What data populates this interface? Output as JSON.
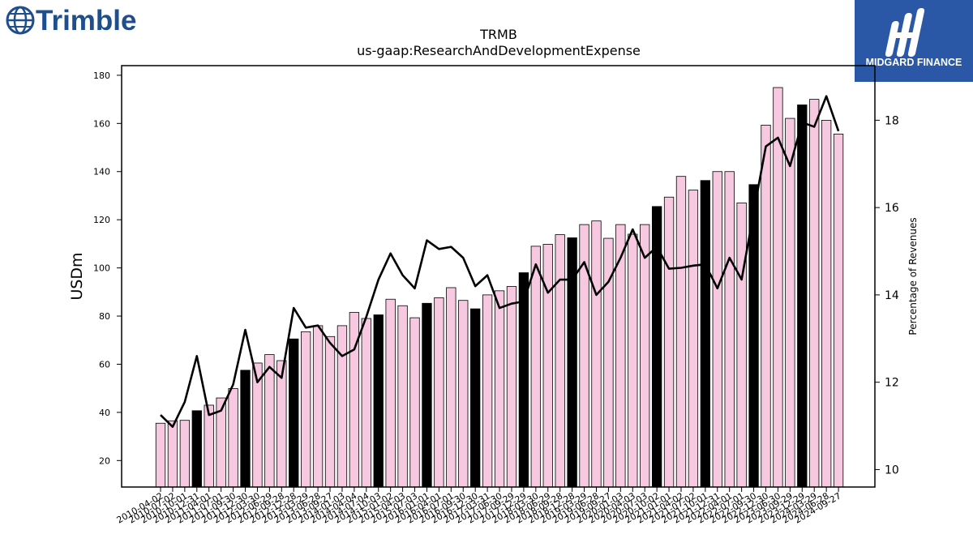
{
  "branding": {
    "left_logo_text": "Trimble",
    "left_logo_color": "#1f4e8c",
    "right_logo_text": "MIDGARD FINANCE",
    "right_logo_bg": "#2b58a6"
  },
  "chart_data": {
    "type": "bar",
    "title": "TRMB",
    "subtitle": "us-gaap:ResearchAndDevelopmentExpense",
    "ylabel": "USDm",
    "y2label": "Percentage of Revenues",
    "ylim": [
      9,
      184
    ],
    "y2lim": [
      9.6,
      19.25
    ],
    "yticks": [
      20,
      40,
      60,
      80,
      100,
      120,
      140,
      160,
      180
    ],
    "y2ticks": [
      10,
      12,
      14,
      16,
      18
    ],
    "bar_color": "#f7c9e0",
    "annual_bar_color": "#000000",
    "line_color": "#000000",
    "categories": [
      "2010-04-02",
      "2010-07-02",
      "2010-10-01",
      "2010-12-31",
      "2011-04-01",
      "2011-07-01",
      "2011-09-30",
      "2011-12-30",
      "2012-03-30",
      "2012-06-29",
      "2012-09-28",
      "2012-12-28",
      "2013-03-29",
      "2013-06-28",
      "2013-09-27",
      "2014-01-03",
      "2014-04-04",
      "2014-07-04",
      "2014-10-03",
      "2015-01-02",
      "2015-04-03",
      "2015-07-03",
      "2016-01-01",
      "2016-04-01",
      "2016-07-01",
      "2016-09-30",
      "2016-12-30",
      "2017-03-31",
      "2017-06-30",
      "2017-09-29",
      "2017-12-29",
      "2018-03-30",
      "2018-06-29",
      "2018-09-28",
      "2018-12-28",
      "2019-03-29",
      "2019-06-28",
      "2019-09-27",
      "2020-01-03",
      "2020-04-03",
      "2020-07-03",
      "2020-10-02",
      "2021-01-01",
      "2021-04-02",
      "2021-07-02",
      "2021-10-01",
      "2021-12-31",
      "2022-04-01",
      "2022-07-01",
      "2022-09-30",
      "2022-12-30",
      "2023-06-30",
      "2023-09-29",
      "2023-12-29",
      "2024-03-29",
      "2024-06-28",
      "2024-09-27"
    ],
    "xtick_labels": [
      "2010-04-02",
      "2010-07-02",
      "2010-10-01",
      "2010-12-31",
      "2011-04-01",
      "2011-07-01",
      "2011-09-30",
      "2011-12-30",
      "2012-03-30",
      "2012-06-29",
      "2012-09-28",
      "2012-12-28",
      "2013-03-29",
      "2013-06-28",
      "2013-09-27",
      "2014-01-03",
      "2014-04-04",
      "2014-07-04",
      "2014-10-03",
      "2015-01-02",
      "2015-04-03",
      "2015-07-03",
      "2016-01-01",
      "2016-04-01",
      "2016-07-01",
      "2016-09-30",
      "2016-12-30",
      "2017-03-31",
      "2017-06-30",
      "2017-09-29",
      "2017-12-29",
      "2018-03-30",
      "2018-06-29",
      "2018-09-28",
      "2018-12-28",
      "2019-03-29",
      "2019-06-28",
      "2019-09-27",
      "2020-01-03",
      "2020-04-03",
      "2020-07-03",
      "2020-10-02",
      "2021-01-01",
      "2021-04-02",
      "2021-07-02",
      "2021-10-01",
      "2021-12-31",
      "2022-04-01",
      "2022-07-01",
      "2022-09-30",
      "2022-12-30",
      "2023-06-30",
      "2023-09-29",
      "2023-12-29",
      "2024-03-29",
      "2024-06-28",
      "2024-09-27"
    ],
    "series": [
      {
        "values": [
          35.5,
          36.5,
          36.7,
          40.7,
          43,
          46,
          49.9,
          57.5,
          60.5,
          64,
          61.5,
          70.5,
          73.5,
          76,
          71.5,
          76,
          81.5,
          79,
          80.5,
          87,
          84.3,
          79.3,
          85.3,
          87.6,
          91.8,
          86.5,
          83,
          88.8,
          90.5,
          92.3,
          98,
          109,
          109.8,
          113.8,
          112.5,
          118,
          119.5,
          112.3,
          118,
          114,
          118,
          125.5,
          129.4,
          138,
          132.3,
          136.3,
          140,
          140,
          127,
          134.6,
          159.3,
          174.9,
          162.1,
          167.7,
          170,
          161.3,
          155.6
        ],
        "annual": [
          false,
          false,
          false,
          true,
          false,
          false,
          false,
          true,
          false,
          false,
          false,
          true,
          false,
          false,
          false,
          false,
          false,
          false,
          true,
          false,
          false,
          false,
          true,
          false,
          false,
          false,
          true,
          false,
          false,
          false,
          true,
          false,
          false,
          false,
          true,
          false,
          false,
          false,
          false,
          false,
          false,
          true,
          false,
          false,
          false,
          true,
          false,
          false,
          false,
          true,
          false,
          false,
          false,
          true,
          false,
          false,
          false
        ]
      },
      {
        "type": "line",
        "values": [
          11.25,
          10.98,
          11.55,
          12.6,
          11.25,
          11.35,
          11.95,
          13.2,
          12.0,
          12.35,
          12.1,
          13.7,
          13.25,
          13.3,
          12.9,
          12.6,
          12.75,
          13.5,
          14.35,
          14.95,
          14.45,
          14.15,
          15.25,
          15.05,
          15.1,
          14.85,
          14.2,
          14.45,
          13.7,
          13.8,
          13.85,
          14.7,
          14.05,
          14.35,
          14.35,
          14.75,
          14.0,
          14.3,
          14.85,
          15.5,
          14.85,
          15.1,
          14.6,
          14.62,
          14.67,
          14.7,
          14.15,
          14.85,
          14.35,
          15.9,
          17.4,
          17.6,
          16.95,
          17.95,
          17.85,
          18.55,
          17.75
        ]
      }
    ]
  }
}
